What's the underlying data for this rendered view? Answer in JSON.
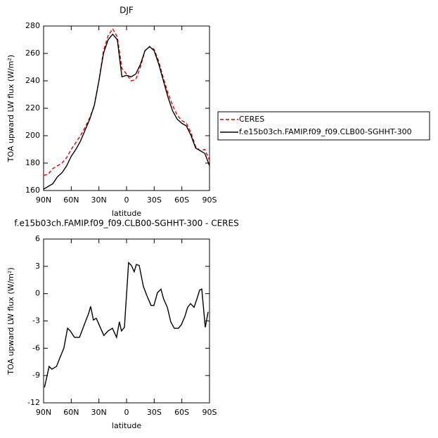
{
  "chart_data": [
    {
      "type": "line",
      "title": "DJF",
      "xlabel": "latitude",
      "ylabel": "TOA upward LW flux (W/m²)",
      "x": [
        90,
        85,
        80,
        75,
        70,
        65,
        60,
        55,
        50,
        45,
        40,
        35,
        30,
        25,
        20,
        15,
        10,
        5,
        0,
        -5,
        -10,
        -15,
        -20,
        -25,
        -30,
        -35,
        -40,
        -45,
        -50,
        -55,
        -60,
        -65,
        -70,
        -75,
        -80,
        -85,
        -90
      ],
      "series": [
        {
          "name": "CERES",
          "color": "#e00000",
          "dash": true,
          "values": [
            171,
            172,
            176,
            178,
            180,
            184,
            190,
            195,
            200,
            206,
            213,
            222,
            240,
            262,
            273,
            278,
            272,
            249,
            245,
            240,
            241,
            250,
            262,
            265,
            263,
            254,
            242,
            231,
            222,
            215,
            211,
            209,
            202,
            192,
            189,
            190,
            182
          ]
        },
        {
          "name": "f.e15b03ch.FAMIP.f09_f09.CLB00-SGHHT-300",
          "color": "#000000",
          "dash": false,
          "values": [
            161,
            163,
            165,
            170,
            173,
            178,
            185,
            190,
            196,
            204,
            212,
            222,
            240,
            260,
            270,
            274,
            270,
            243,
            244,
            243,
            245,
            252,
            262,
            265,
            262,
            252,
            240,
            228,
            218,
            212,
            209,
            207,
            200,
            191,
            189,
            187,
            178
          ]
        }
      ],
      "xlim": [
        90,
        -90
      ],
      "xticks": [
        {
          "value": 90,
          "label": "90N"
        },
        {
          "value": 60,
          "label": "60N"
        },
        {
          "value": 30,
          "label": "30N"
        },
        0,
        {
          "value": -30,
          "label": "30S"
        },
        {
          "value": -60,
          "label": "60S"
        },
        {
          "value": -90,
          "label": "90S"
        }
      ],
      "ylim": [
        160,
        280
      ],
      "yticks": [
        160,
        180,
        200,
        220,
        240,
        260,
        280
      ],
      "legend": "right"
    },
    {
      "type": "line",
      "title": "f.e15b03ch.FAMIP.f09_f09.CLB00-SGHHT-300  -  CERES",
      "xlabel": "latitude",
      "ylabel": "TOA upward LW flux (W/m²)",
      "x": [
        89,
        84,
        81,
        76,
        72.5,
        68,
        64,
        61,
        56.5,
        51,
        47.3,
        44.3,
        41.2,
        39,
        35.9,
        32.9,
        29,
        24.6,
        20,
        15.3,
        10.8,
        7.8,
        5.5,
        2.3,
        -2.2,
        -5.3,
        -8.3,
        -10.6,
        -13.7,
        -18.2,
        -22,
        -26.6,
        -29.7,
        -33.5,
        -37.3,
        -40.3,
        -44.2,
        -48,
        -51.8,
        -56.3,
        -59.5,
        -63.3,
        -66.3,
        -69.4,
        -73.2,
        -76.3,
        -79.3,
        -81.6,
        -85.4,
        -88.5
      ],
      "series": [
        {
          "color": "#000000",
          "dash": false,
          "values": [
            -10.3,
            -8,
            -8.3,
            -8,
            -7.1,
            -6,
            -3.8,
            -4.1,
            -4.8,
            -4.8,
            -3.8,
            -3,
            -2.2,
            -1.4,
            -2.9,
            -2.7,
            -3.6,
            -4.6,
            -4.1,
            -3.8,
            -4.8,
            -3.1,
            -4.1,
            -3.7,
            3.4,
            3.1,
            2.4,
            3.2,
            3.1,
            0.8,
            -0.2,
            -1.3,
            -1.3,
            0.1,
            0.5,
            -0.6,
            -1.5,
            -3.1,
            -3.8,
            -3.8,
            -3.4,
            -2.5,
            -1.5,
            -1.1,
            -1.5,
            -0.6,
            0.4,
            0.5,
            -3.7,
            -2
          ]
        }
      ],
      "xlim": [
        90,
        -90
      ],
      "xticks": [
        {
          "value": 90,
          "label": "90N"
        },
        {
          "value": 60,
          "label": "60N"
        },
        {
          "value": 30,
          "label": "30N"
        },
        0,
        {
          "value": -30,
          "label": "30S"
        },
        {
          "value": -60,
          "label": "60S"
        },
        {
          "value": -90,
          "label": "90S"
        }
      ],
      "ylim": [
        -12,
        6
      ],
      "yticks": [
        -12,
        -9,
        -6,
        -3,
        0,
        3,
        6
      ]
    }
  ]
}
